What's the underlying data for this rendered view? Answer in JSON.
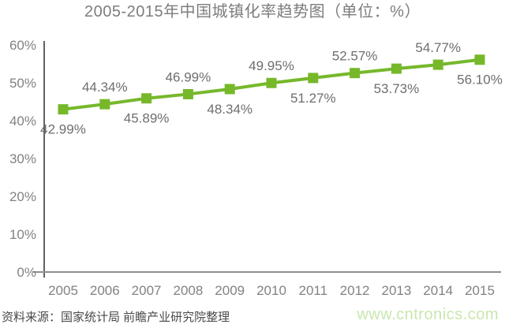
{
  "title": "2005-2015年中国城镇化率趋势图（单位：%）",
  "footer": {
    "source": "资料来源：国家统计局 前瞻产业研究院整理",
    "watermark": "www.cntronics.com"
  },
  "chart_data": {
    "type": "line",
    "title": "2005-2015年中国城镇化率趋势图（单位：%）",
    "categories": [
      "2005",
      "2006",
      "2007",
      "2008",
      "2009",
      "2010",
      "2011",
      "2012",
      "2013",
      "2014",
      "2015"
    ],
    "series": [
      {
        "name": "中国城镇化率",
        "values": [
          42.99,
          44.34,
          45.89,
          46.99,
          48.34,
          49.95,
          51.27,
          52.57,
          53.73,
          54.77,
          56.1
        ],
        "labels": [
          "42.99%",
          "44.34%",
          "45.89%",
          "46.99%",
          "48.34%",
          "49.95%",
          "51.27%",
          "52.57%",
          "53.73%",
          "54.77%",
          "56.10%"
        ]
      }
    ],
    "xlabel": "",
    "ylabel": "",
    "ylim": [
      0,
      60
    ],
    "y_ticks": [
      "0%",
      "10%",
      "20%",
      "30%",
      "40%",
      "50%",
      "60%"
    ],
    "y_tick_values": [
      0,
      10,
      20,
      30,
      40,
      50,
      60
    ],
    "grid": false,
    "legend": false,
    "marker": "square",
    "label_placement": "alternate-below-above"
  },
  "colors": {
    "line_green": "#76b82a",
    "marker_green": "#76b82a",
    "title_gray": "#7d7d7d",
    "axis_label_gray": "#828282",
    "data_label_gray": "#6e6e6e",
    "y_axis_line": "#3d3a38",
    "x_axis_line": "#928e8b",
    "source_text": "#4a4a4a",
    "watermark_green": "#c9e7ae",
    "background": "#ffffff"
  }
}
